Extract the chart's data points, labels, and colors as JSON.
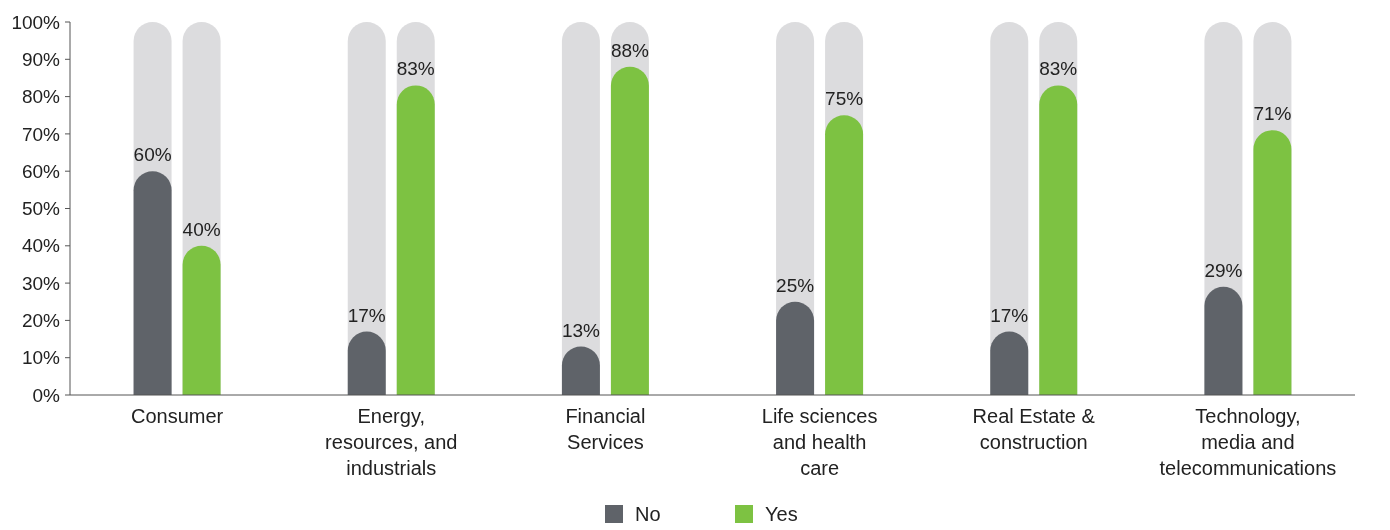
{
  "chart_data": {
    "type": "bar",
    "categories": [
      "Consumer",
      "Energy, resources, and industrials",
      "Financial Services",
      "Life sciences and health care",
      "Real Estate & construction",
      "Technology, media and telecommunications"
    ],
    "series": [
      {
        "name": "No",
        "color": "#5f6369",
        "values": [
          60,
          17,
          13,
          25,
          17,
          29
        ]
      },
      {
        "name": "Yes",
        "color": "#7dc242",
        "values": [
          40,
          83,
          88,
          75,
          83,
          71
        ]
      }
    ],
    "ylim": [
      0,
      100
    ],
    "yticks": [
      {
        "value": 0,
        "label": "0%"
      },
      {
        "value": 10,
        "label": "10%"
      },
      {
        "value": 20,
        "label": "20%"
      },
      {
        "value": 30,
        "label": "30%"
      },
      {
        "value": 40,
        "label": "40%"
      },
      {
        "value": 50,
        "label": "50%"
      },
      {
        "value": 60,
        "label": "60%"
      },
      {
        "value": 70,
        "label": "70%"
      },
      {
        "value": 80,
        "label": "80%"
      },
      {
        "value": 90,
        "label": "90%"
      },
      {
        "value": 100,
        "label": "100%"
      }
    ],
    "value_labels": [
      [
        "60%",
        "17%",
        "13%",
        "25%",
        "17%",
        "29%"
      ],
      [
        "40%",
        "83%",
        "88%",
        "75%",
        "83%",
        "71%"
      ]
    ],
    "legend": "bottom",
    "grid": false
  }
}
